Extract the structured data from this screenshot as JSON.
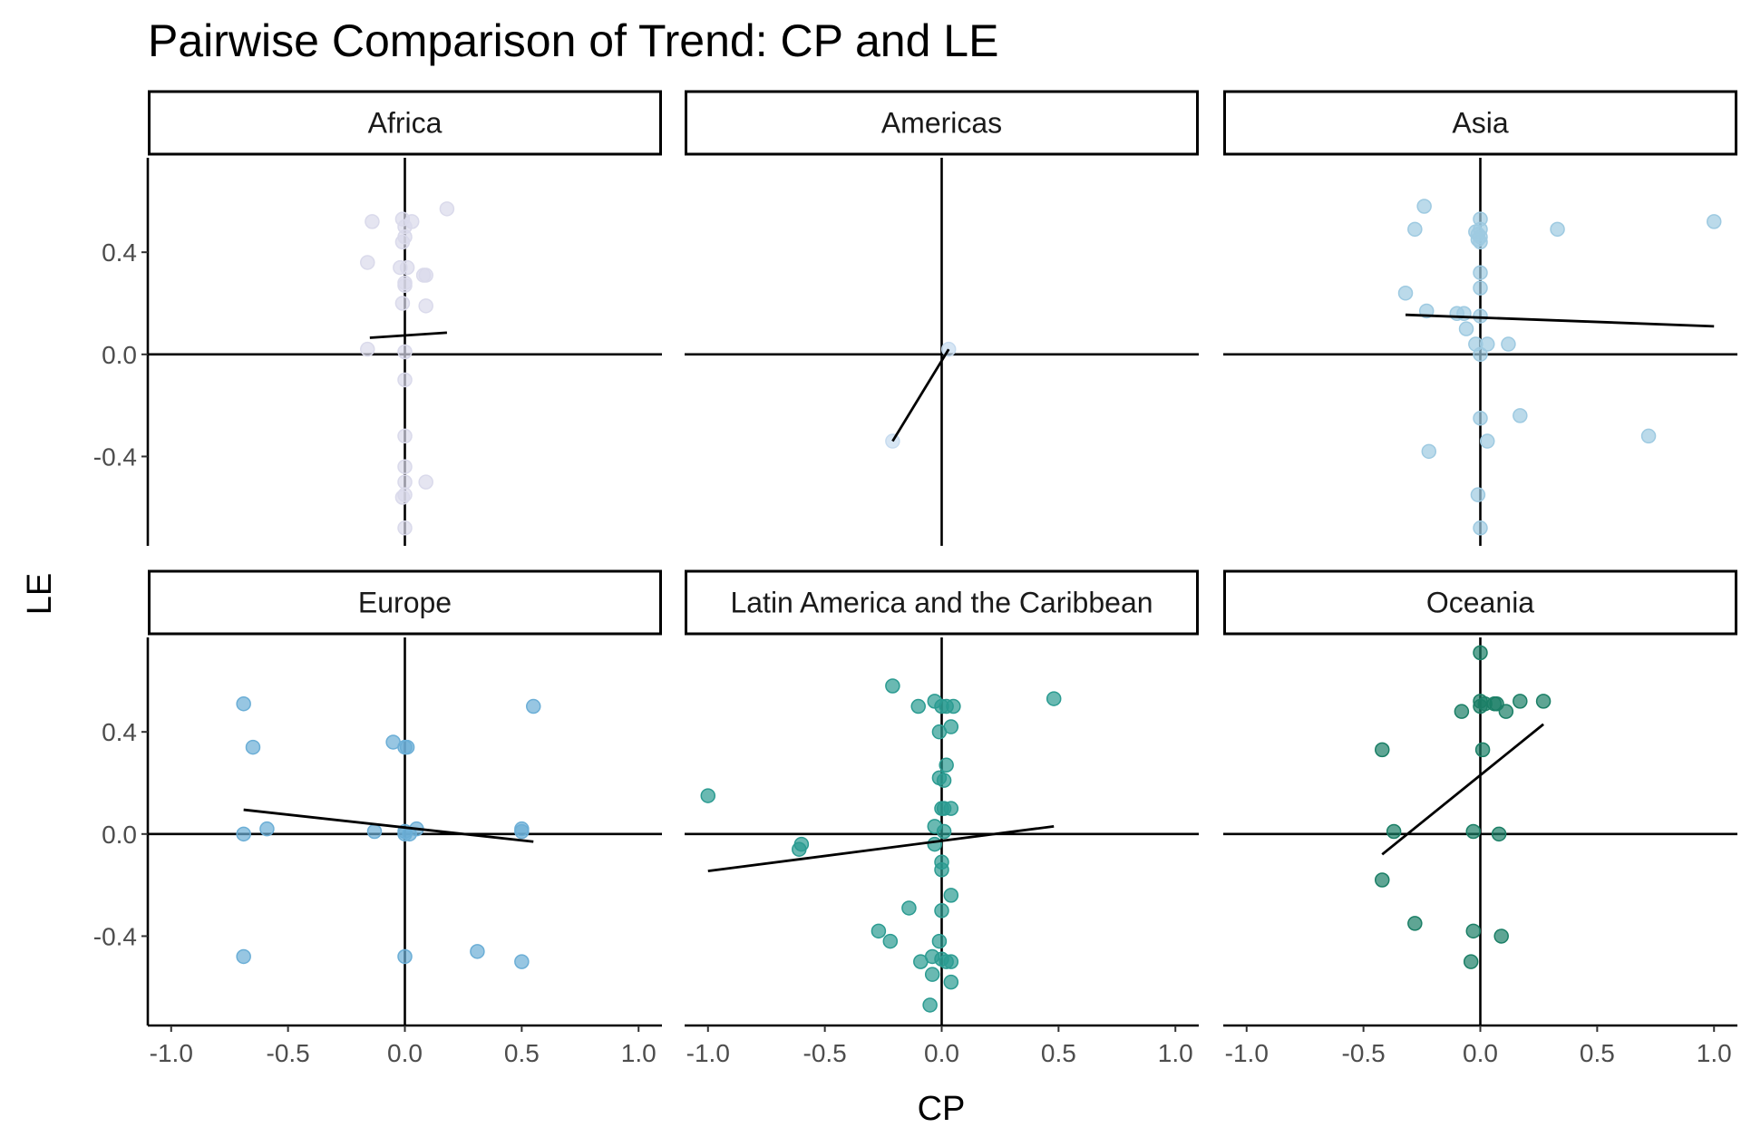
{
  "chart_data": {
    "type": "scatter",
    "title": "Pairwise Comparison of Trend: CP and LE",
    "xlabel": "CP",
    "ylabel": "LE",
    "xlim": [
      -1.1,
      1.1
    ],
    "ylim": [
      -0.75,
      0.77
    ],
    "x_ticks": [
      -1.0,
      -0.5,
      0.0,
      0.5,
      1.0
    ],
    "x_tick_labels": [
      "-1.0",
      "-0.5",
      "0.0",
      "0.5",
      "1.0"
    ],
    "y_ticks": [
      -0.4,
      0.0,
      0.4
    ],
    "y_tick_labels": [
      "-0.4",
      "0.0",
      "0.4"
    ],
    "grid": false,
    "legend": "none",
    "facets": [
      {
        "name": "Africa",
        "color": "#DADAEB",
        "points": [
          [
            -0.14,
            0.52
          ],
          [
            -0.01,
            0.53
          ],
          [
            0.0,
            0.5
          ],
          [
            0.03,
            0.52
          ],
          [
            0.18,
            0.57
          ],
          [
            -0.01,
            0.44
          ],
          [
            0.0,
            0.46
          ],
          [
            -0.16,
            0.36
          ],
          [
            -0.02,
            0.34
          ],
          [
            0.01,
            0.34
          ],
          [
            0.08,
            0.31
          ],
          [
            0.09,
            0.31
          ],
          [
            0.0,
            0.28
          ],
          [
            0.0,
            0.27
          ],
          [
            -0.01,
            0.2
          ],
          [
            0.09,
            0.19
          ],
          [
            -0.16,
            0.02
          ],
          [
            0.0,
            0.01
          ],
          [
            0.0,
            -0.1
          ],
          [
            0.0,
            -0.32
          ],
          [
            0.0,
            -0.44
          ],
          [
            0.0,
            -0.5
          ],
          [
            0.09,
            -0.5
          ],
          [
            0.0,
            -0.55
          ],
          [
            -0.01,
            -0.56
          ],
          [
            0.0,
            -0.68
          ]
        ],
        "trend": [
          [
            -0.15,
            0.065
          ],
          [
            0.18,
            0.085
          ]
        ]
      },
      {
        "name": "Americas",
        "color": "#C6DBEF",
        "points": [
          [
            -0.21,
            -0.34
          ],
          [
            0.03,
            0.02
          ]
        ],
        "trend": [
          [
            -0.21,
            -0.34
          ],
          [
            0.03,
            0.02
          ]
        ]
      },
      {
        "name": "Asia",
        "color": "#9ECAE1",
        "points": [
          [
            -0.24,
            0.58
          ],
          [
            0.0,
            0.53
          ],
          [
            -0.28,
            0.49
          ],
          [
            0.0,
            0.49
          ],
          [
            -0.01,
            0.47
          ],
          [
            -0.02,
            0.48
          ],
          [
            0.0,
            0.46
          ],
          [
            -0.01,
            0.45
          ],
          [
            0.0,
            0.44
          ],
          [
            0.33,
            0.49
          ],
          [
            1.0,
            0.52
          ],
          [
            0.0,
            0.32
          ],
          [
            0.0,
            0.26
          ],
          [
            -0.32,
            0.24
          ],
          [
            -0.23,
            0.17
          ],
          [
            -0.1,
            0.16
          ],
          [
            -0.07,
            0.16
          ],
          [
            0.0,
            0.15
          ],
          [
            -0.06,
            0.1
          ],
          [
            -0.02,
            0.04
          ],
          [
            0.03,
            0.04
          ],
          [
            0.12,
            0.04
          ],
          [
            0.0,
            0.0
          ],
          [
            0.0,
            -0.25
          ],
          [
            0.17,
            -0.24
          ],
          [
            0.03,
            -0.34
          ],
          [
            0.72,
            -0.32
          ],
          [
            -0.22,
            -0.38
          ],
          [
            -0.01,
            -0.55
          ],
          [
            0.0,
            -0.68
          ]
        ],
        "trend": [
          [
            -0.32,
            0.155
          ],
          [
            1.0,
            0.11
          ]
        ]
      },
      {
        "name": "Europe",
        "color": "#6BAED6",
        "points": [
          [
            -0.69,
            0.51
          ],
          [
            0.55,
            0.5
          ],
          [
            -0.05,
            0.36
          ],
          [
            0.0,
            0.34
          ],
          [
            0.01,
            0.34
          ],
          [
            -0.65,
            0.34
          ],
          [
            -0.59,
            0.02
          ],
          [
            -0.69,
            0.0
          ],
          [
            -0.13,
            0.01
          ],
          [
            0.0,
            0.01
          ],
          [
            0.05,
            0.02
          ],
          [
            0.0,
            0.0
          ],
          [
            0.02,
            0.0
          ],
          [
            0.5,
            0.02
          ],
          [
            0.5,
            0.01
          ],
          [
            -0.69,
            -0.48
          ],
          [
            0.0,
            -0.48
          ],
          [
            0.31,
            -0.46
          ],
          [
            0.5,
            -0.5
          ]
        ],
        "trend": [
          [
            -0.69,
            0.095
          ],
          [
            0.55,
            -0.03
          ]
        ]
      },
      {
        "name": "Latin America and the Caribbean",
        "color": "#2B9B91",
        "points": [
          [
            -0.21,
            0.58
          ],
          [
            -0.1,
            0.5
          ],
          [
            -0.03,
            0.52
          ],
          [
            0.0,
            0.5
          ],
          [
            0.02,
            0.5
          ],
          [
            0.05,
            0.5
          ],
          [
            0.48,
            0.53
          ],
          [
            0.04,
            0.42
          ],
          [
            -0.01,
            0.4
          ],
          [
            0.02,
            0.27
          ],
          [
            -0.01,
            0.22
          ],
          [
            0.01,
            0.21
          ],
          [
            -1.0,
            0.15
          ],
          [
            0.0,
            0.1
          ],
          [
            0.01,
            0.1
          ],
          [
            0.04,
            0.1
          ],
          [
            -0.03,
            0.03
          ],
          [
            0.01,
            0.01
          ],
          [
            -0.6,
            -0.04
          ],
          [
            -0.61,
            -0.06
          ],
          [
            -0.03,
            -0.04
          ],
          [
            0.0,
            -0.11
          ],
          [
            0.0,
            -0.14
          ],
          [
            0.04,
            -0.24
          ],
          [
            -0.14,
            -0.29
          ],
          [
            0.0,
            -0.3
          ],
          [
            -0.27,
            -0.38
          ],
          [
            -0.22,
            -0.42
          ],
          [
            -0.01,
            -0.42
          ],
          [
            -0.09,
            -0.5
          ],
          [
            -0.04,
            -0.48
          ],
          [
            0.0,
            -0.49
          ],
          [
            0.02,
            -0.5
          ],
          [
            0.04,
            -0.5
          ],
          [
            -0.04,
            -0.55
          ],
          [
            0.04,
            -0.58
          ],
          [
            -0.05,
            -0.67
          ]
        ],
        "trend": [
          [
            -1.0,
            -0.145
          ],
          [
            0.48,
            0.03
          ]
        ]
      },
      {
        "name": "Oceania",
        "color": "#1B7F66",
        "points": [
          [
            0.0,
            0.71
          ],
          [
            0.0,
            0.52
          ],
          [
            0.02,
            0.51
          ],
          [
            0.06,
            0.51
          ],
          [
            0.07,
            0.51
          ],
          [
            0.17,
            0.52
          ],
          [
            0.27,
            0.52
          ],
          [
            -0.08,
            0.48
          ],
          [
            0.11,
            0.48
          ],
          [
            0.0,
            0.5
          ],
          [
            -0.42,
            0.33
          ],
          [
            0.01,
            0.33
          ],
          [
            -0.37,
            0.01
          ],
          [
            -0.03,
            0.01
          ],
          [
            0.08,
            0.0
          ],
          [
            -0.42,
            -0.18
          ],
          [
            -0.28,
            -0.35
          ],
          [
            -0.03,
            -0.38
          ],
          [
            0.09,
            -0.4
          ],
          [
            -0.04,
            -0.5
          ]
        ],
        "trend": [
          [
            -0.42,
            -0.08
          ],
          [
            0.27,
            0.43
          ]
        ]
      }
    ]
  }
}
